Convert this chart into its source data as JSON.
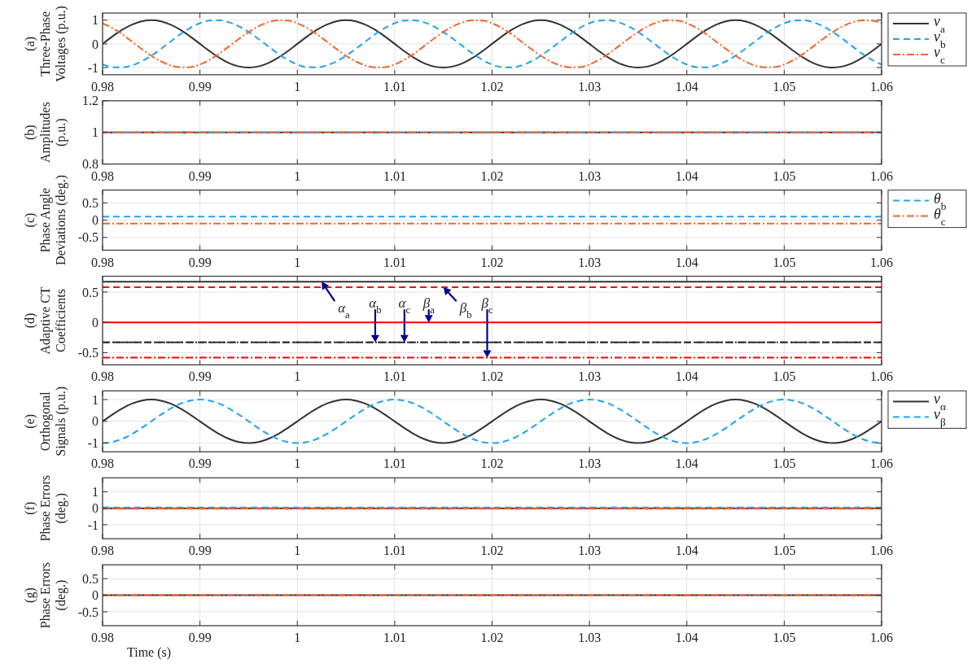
{
  "chart_data": [
    {
      "type": "line",
      "ylabel": "(a)\nThree-Phase\nVoltages (p.u.)",
      "x": [
        0.98,
        0.981,
        0.982,
        0.983,
        0.984,
        0.985,
        0.986,
        0.987,
        0.988,
        0.989,
        0.99,
        0.991,
        0.992,
        0.993,
        0.994,
        0.995,
        0.996,
        0.997,
        0.998,
        0.999,
        1,
        1.001,
        1.002,
        1.003,
        1.004,
        1.005,
        1.006,
        1.007,
        1.008,
        1.009,
        1.01,
        1.011,
        1.012,
        1.013,
        1.014,
        1.015,
        1.016,
        1.017,
        1.018,
        1.019,
        1.02,
        1.021,
        1.022,
        1.023,
        1.024,
        1.025,
        1.026,
        1.027,
        1.028,
        1.029,
        1.03,
        1.031,
        1.032,
        1.033,
        1.034,
        1.035,
        1.036,
        1.037,
        1.038,
        1.039,
        1.04,
        1.041,
        1.042,
        1.043,
        1.044,
        1.045,
        1.046,
        1.047,
        1.048,
        1.049,
        1.05,
        1.051,
        1.052,
        1.053,
        1.054,
        1.055,
        1.056,
        1.057,
        1.058,
        1.059,
        1.06
      ],
      "xlim": [
        0.98,
        1.06
      ],
      "xticks": [
        0.98,
        0.99,
        1,
        1.01,
        1.02,
        1.03,
        1.04,
        1.05,
        1.06
      ],
      "ylim": [
        -1.3,
        1.3
      ],
      "yticks": [
        -1,
        0,
        1
      ],
      "grid": true,
      "legend": "right",
      "series": [
        {
          "name": "v$_{a}$",
          "color": "#333333",
          "line_style": "solid",
          "values": [
            0,
            0.31,
            0.59,
            0.81,
            0.95,
            1,
            0.95,
            0.81,
            0.59,
            0.31,
            0,
            -0.31,
            -0.59,
            -0.81,
            -0.95,
            -1,
            -0.95,
            -0.81,
            -0.59,
            -0.31,
            0,
            0.31,
            0.59,
            0.81,
            0.95,
            1,
            0.95,
            0.81,
            0.59,
            0.31,
            0,
            -0.31,
            -0.59,
            -0.81,
            -0.95,
            -1,
            -0.95,
            -0.81,
            -0.59,
            -0.31,
            0,
            0.31,
            0.59,
            0.81,
            0.95,
            1,
            0.95,
            0.81,
            0.59,
            0.31,
            0,
            -0.31,
            -0.59,
            -0.81,
            -0.95,
            -1,
            -0.95,
            -0.81,
            -0.59,
            -0.31,
            0,
            0.31,
            0.59,
            0.81,
            0.95,
            1,
            0.95,
            0.81,
            0.59,
            0.31,
            0,
            -0.31,
            -0.59,
            -0.81,
            -0.95,
            -1,
            -0.95,
            -0.81,
            -0.59,
            -0.31,
            0
          ]
        },
        {
          "name": "v$_{b}$",
          "color": "#22a3f0",
          "line_style": "dashed",
          "values": [
            -0.87,
            -0.98,
            -0.99,
            -0.91,
            -0.74,
            -0.5,
            -0.21,
            0.1,
            0.41,
            0.67,
            0.87,
            0.98,
            0.99,
            0.91,
            0.74,
            0.5,
            0.21,
            -0.1,
            -0.41,
            -0.67,
            -0.87,
            -0.98,
            -0.99,
            -0.91,
            -0.74,
            -0.5,
            -0.21,
            0.1,
            0.41,
            0.67,
            0.87,
            0.98,
            0.99,
            0.91,
            0.74,
            0.5,
            0.21,
            -0.1,
            -0.41,
            -0.67,
            -0.87,
            -0.98,
            -0.99,
            -0.91,
            -0.74,
            -0.5,
            -0.21,
            0.1,
            0.41,
            0.67,
            0.87,
            0.98,
            0.99,
            0.91,
            0.74,
            0.5,
            0.21,
            -0.1,
            -0.41,
            -0.67,
            -0.87,
            -0.98,
            -0.99,
            -0.91,
            -0.74,
            -0.5,
            -0.21,
            0.1,
            0.41,
            0.67,
            0.87,
            0.98,
            0.99,
            0.91,
            0.74,
            0.5,
            0.21,
            -0.1,
            -0.41,
            -0.67,
            -0.87
          ]
        },
        {
          "name": "v$_{c}$",
          "color": "#f5642d",
          "line_style": "dashdot",
          "values": [
            0.87,
            0.67,
            0.41,
            0.1,
            -0.21,
            -0.5,
            -0.74,
            -0.91,
            -0.99,
            -0.98,
            -0.87,
            -0.67,
            -0.41,
            -0.1,
            0.21,
            0.5,
            0.74,
            0.91,
            0.99,
            0.98,
            0.87,
            0.67,
            0.41,
            0.1,
            -0.21,
            -0.5,
            -0.74,
            -0.91,
            -0.99,
            -0.98,
            -0.87,
            -0.67,
            -0.41,
            -0.1,
            0.21,
            0.5,
            0.74,
            0.91,
            0.99,
            0.98,
            0.87,
            0.67,
            0.41,
            0.1,
            -0.21,
            -0.5,
            -0.74,
            -0.91,
            -0.99,
            -0.98,
            -0.87,
            -0.67,
            -0.41,
            -0.1,
            0.21,
            0.5,
            0.74,
            0.91,
            0.99,
            0.98,
            0.87,
            0.67,
            0.41,
            0.1,
            -0.21,
            -0.5,
            -0.74,
            -0.91,
            -0.99,
            -0.98,
            -0.87,
            -0.67,
            -0.41,
            -0.1,
            0.21,
            0.5,
            0.74,
            0.91,
            0.99,
            0.98,
            0.87
          ]
        }
      ]
    },
    {
      "type": "line",
      "ylabel": "(b)\nAmplitudes\n(p.u.)",
      "x": [
        0.98,
        1.06
      ],
      "xlim": [
        0.98,
        1.06
      ],
      "xticks": [
        0.98,
        0.99,
        1,
        1.01,
        1.02,
        1.03,
        1.04,
        1.05,
        1.06
      ],
      "ylim": [
        0.8,
        1.2
      ],
      "yticks": [
        0.8,
        1,
        1.2
      ],
      "grid": true,
      "series": [
        {
          "color": "#333333",
          "line_style": "solid",
          "values": [
            1,
            1
          ]
        },
        {
          "color": "#22a3f0",
          "line_style": "dashed",
          "values": [
            1,
            1
          ]
        },
        {
          "color": "#f5642d",
          "line_style": "dashdot",
          "values": [
            1,
            1
          ]
        }
      ]
    },
    {
      "type": "line",
      "ylabel": "(c)\nPhase Angle\nDeviations (deg.)",
      "x": [
        0.98,
        1.06
      ],
      "xlim": [
        0.98,
        1.06
      ],
      "xticks": [
        0.98,
        0.99,
        1,
        1.01,
        1.02,
        1.03,
        1.04,
        1.05,
        1.06
      ],
      "ylim": [
        -0.87,
        0.87
      ],
      "yticks": [
        -0.5,
        0,
        0.5
      ],
      "grid": true,
      "legend": "right",
      "series": [
        {
          "name": "θ$_{b}$",
          "color": "#22a3f0",
          "line_style": "dashed",
          "values": [
            0.1,
            0.1
          ]
        },
        {
          "name": "θ$_{c}$",
          "color": "#f5642d",
          "line_style": "dashdot",
          "values": [
            -0.1,
            -0.1
          ]
        }
      ]
    },
    {
      "type": "line",
      "ylabel": "(d)\nAdaptive CT\nCoefficients",
      "x": [
        0.98,
        1.06
      ],
      "xlim": [
        0.98,
        1.06
      ],
      "xticks": [
        0.98,
        0.99,
        1,
        1.01,
        1.02,
        1.03,
        1.04,
        1.05,
        1.06
      ],
      "ylim": [
        -0.7,
        0.76
      ],
      "yticks": [
        -0.5,
        0,
        0.5
      ],
      "grid": true,
      "series": [
        {
          "color": "#333333",
          "line_style": "solid",
          "values": [
            0.67,
            0.67
          ]
        },
        {
          "color": "#333333",
          "line_style": "dashed",
          "values": [
            -0.33,
            -0.33
          ]
        },
        {
          "color": "#333333",
          "line_style": "dashdot",
          "values": [
            -0.33,
            -0.33
          ]
        },
        {
          "color": "#ff0000",
          "line_style": "solid",
          "values": [
            0,
            0
          ]
        },
        {
          "color": "#ff0000",
          "line_style": "dashed",
          "values": [
            0.58,
            0.58
          ]
        },
        {
          "color": "#ff0000",
          "line_style": "dashdot",
          "values": [
            -0.58,
            -0.58
          ]
        }
      ],
      "annotations": [
        {
          "text": "α$_{a}$",
          "x": 1.0025,
          "y": 0.67
        },
        {
          "text": "α$_{b}$",
          "x": 1.008,
          "y": -0.33
        },
        {
          "text": "α$_{c}$",
          "x": 1.011,
          "y": -0.33
        },
        {
          "text": "β$_{a}$",
          "x": 1.0135,
          "y": 0
        },
        {
          "text": "β$_{b}$",
          "x": 1.015,
          "y": 0.58
        },
        {
          "text": "β$_{c}$",
          "x": 1.0195,
          "y": -0.58
        }
      ]
    },
    {
      "type": "line",
      "ylabel": "(e)\nOrthogonal\nSignals (p.u.)",
      "x": [
        0.98,
        0.981,
        0.982,
        0.983,
        0.984,
        0.985,
        0.986,
        0.987,
        0.988,
        0.989,
        0.99,
        0.991,
        0.992,
        0.993,
        0.994,
        0.995,
        0.996,
        0.997,
        0.998,
        0.999,
        1,
        1.001,
        1.002,
        1.003,
        1.004,
        1.005,
        1.006,
        1.007,
        1.008,
        1.009,
        1.01,
        1.011,
        1.012,
        1.013,
        1.014,
        1.015,
        1.016,
        1.017,
        1.018,
        1.019,
        1.02,
        1.021,
        1.022,
        1.023,
        1.024,
        1.025,
        1.026,
        1.027,
        1.028,
        1.029,
        1.03,
        1.031,
        1.032,
        1.033,
        1.034,
        1.035,
        1.036,
        1.037,
        1.038,
        1.039,
        1.04,
        1.041,
        1.042,
        1.043,
        1.044,
        1.045,
        1.046,
        1.047,
        1.048,
        1.049,
        1.05,
        1.051,
        1.052,
        1.053,
        1.054,
        1.055,
        1.056,
        1.057,
        1.058,
        1.059,
        1.06
      ],
      "xlim": [
        0.98,
        1.06
      ],
      "xticks": [
        0.98,
        0.99,
        1,
        1.01,
        1.02,
        1.03,
        1.04,
        1.05,
        1.06
      ],
      "ylim": [
        -1.4,
        1.4
      ],
      "yticks": [
        -1,
        0,
        1
      ],
      "grid": true,
      "legend": "right",
      "series": [
        {
          "name": "v$_{α}$",
          "color": "#333333",
          "line_style": "solid",
          "values": [
            0,
            0.31,
            0.59,
            0.81,
            0.95,
            1,
            0.95,
            0.81,
            0.59,
            0.31,
            0,
            -0.31,
            -0.59,
            -0.81,
            -0.95,
            -1,
            -0.95,
            -0.81,
            -0.59,
            -0.31,
            0,
            0.31,
            0.59,
            0.81,
            0.95,
            1,
            0.95,
            0.81,
            0.59,
            0.31,
            0,
            -0.31,
            -0.59,
            -0.81,
            -0.95,
            -1,
            -0.95,
            -0.81,
            -0.59,
            -0.31,
            0,
            0.31,
            0.59,
            0.81,
            0.95,
            1,
            0.95,
            0.81,
            0.59,
            0.31,
            0,
            -0.31,
            -0.59,
            -0.81,
            -0.95,
            -1,
            -0.95,
            -0.81,
            -0.59,
            -0.31,
            0,
            0.31,
            0.59,
            0.81,
            0.95,
            1,
            0.95,
            0.81,
            0.59,
            0.31,
            0,
            -0.31,
            -0.59,
            -0.81,
            -0.95,
            -1,
            -0.95,
            -0.81,
            -0.59,
            -0.31,
            0
          ]
        },
        {
          "name": "v$_{β}$",
          "color": "#22a3f0",
          "line_style": "dashed",
          "values": [
            -1,
            -0.95,
            -0.81,
            -0.59,
            -0.31,
            0,
            0.31,
            0.59,
            0.81,
            0.95,
            1,
            0.95,
            0.81,
            0.59,
            0.31,
            0,
            -0.31,
            -0.59,
            -0.81,
            -0.95,
            -1,
            -0.95,
            -0.81,
            -0.59,
            -0.31,
            0,
            0.31,
            0.59,
            0.81,
            0.95,
            1,
            0.95,
            0.81,
            0.59,
            0.31,
            0,
            -0.31,
            -0.59,
            -0.81,
            -0.95,
            -1,
            -0.95,
            -0.81,
            -0.59,
            -0.31,
            0,
            0.31,
            0.59,
            0.81,
            0.95,
            1,
            0.95,
            0.81,
            0.59,
            0.31,
            0,
            -0.31,
            -0.59,
            -0.81,
            -0.95,
            -1,
            -0.95,
            -0.81,
            -0.59,
            -0.31,
            0,
            0.31,
            0.59,
            0.81,
            0.95,
            1,
            0.95,
            0.81,
            0.59,
            0.31,
            0,
            -0.31,
            -0.59,
            -0.81,
            -0.95,
            -1
          ]
        }
      ]
    },
    {
      "type": "line",
      "ylabel": "(f)\nPhase Errors\n(deg.)",
      "x": [
        0.98,
        1.06
      ],
      "xlim": [
        0.98,
        1.06
      ],
      "xticks": [
        0.98,
        0.99,
        1,
        1.01,
        1.02,
        1.03,
        1.04,
        1.05,
        1.06
      ],
      "ylim": [
        -1.85,
        1.85
      ],
      "yticks": [
        -1,
        0,
        1
      ],
      "grid": true,
      "series": [
        {
          "color": "#333333",
          "line_style": "solid",
          "values": [
            0,
            0
          ]
        },
        {
          "color": "#22a3f0",
          "line_style": "dashed",
          "values": [
            0.05,
            0.05
          ]
        },
        {
          "color": "#f5642d",
          "line_style": "dashdot",
          "values": [
            -0.03,
            -0.03
          ]
        }
      ]
    },
    {
      "type": "line",
      "ylabel": "(g)\nPhase Errors\n(deg.)",
      "xlabel": "Time (s)",
      "x": [
        0.98,
        1.06
      ],
      "xlim": [
        0.98,
        1.06
      ],
      "xticks": [
        0.98,
        0.99,
        1,
        1.01,
        1.02,
        1.03,
        1.04,
        1.05,
        1.06
      ],
      "ylim": [
        -0.92,
        0.92
      ],
      "yticks": [
        -0.5,
        0,
        0.5
      ],
      "grid": true,
      "series": [
        {
          "color": "#333333",
          "line_style": "solid",
          "values": [
            0,
            0
          ]
        },
        {
          "color": "#f5642d",
          "line_style": "dashdot",
          "values": [
            0,
            0
          ]
        }
      ]
    }
  ]
}
